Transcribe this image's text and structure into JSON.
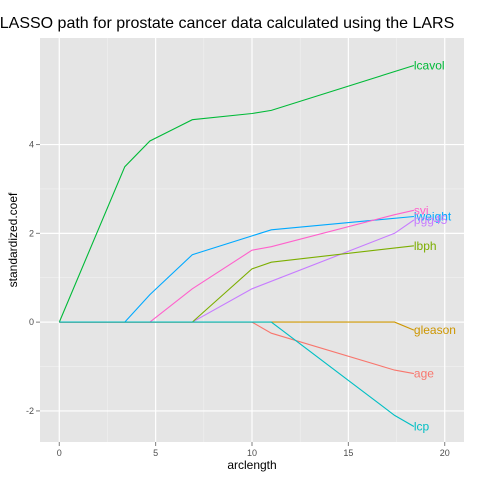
{
  "chart_data": {
    "type": "line",
    "title": "LASSO path for prostate cancer data calculated using the LARS",
    "xlabel": "arclength",
    "ylabel": "standardized.coef",
    "xlim": [
      -1,
      21
    ],
    "ylim": [
      -2.7,
      6.4
    ],
    "xticks": [
      0,
      5,
      10,
      15,
      20
    ],
    "yticks": [
      -2,
      0,
      2,
      4
    ],
    "grid": true,
    "legend": "direct labels at line ends",
    "series": [
      {
        "name": "lcavol",
        "color": "#00BA38",
        "points": [
          [
            0,
            0
          ],
          [
            3.4,
            3.5
          ],
          [
            4.7,
            4.08
          ],
          [
            6.9,
            4.56
          ],
          [
            10,
            4.7
          ],
          [
            11,
            4.77
          ],
          [
            18.4,
            5.78
          ]
        ]
      },
      {
        "name": "lweight",
        "color": "#00A9FF",
        "points": [
          [
            0,
            0
          ],
          [
            3.4,
            0
          ],
          [
            4.7,
            0.62
          ],
          [
            6.9,
            1.52
          ],
          [
            11,
            2.08
          ],
          [
            18.4,
            2.38
          ]
        ]
      },
      {
        "name": "svi",
        "color": "#FF61CC",
        "points": [
          [
            0,
            0
          ],
          [
            4.7,
            0
          ],
          [
            6.9,
            0.75
          ],
          [
            10,
            1.62
          ],
          [
            11,
            1.7
          ],
          [
            17.4,
            2.42
          ],
          [
            18.4,
            2.52
          ]
        ]
      },
      {
        "name": "pgg45",
        "color": "#C77CFF",
        "points": [
          [
            0,
            0
          ],
          [
            6.9,
            0
          ],
          [
            10,
            0.75
          ],
          [
            17.4,
            2.0
          ],
          [
            18.4,
            2.3
          ]
        ]
      },
      {
        "name": "lbph",
        "color": "#7CAE00",
        "points": [
          [
            0,
            0
          ],
          [
            6.9,
            0
          ],
          [
            10,
            1.2
          ],
          [
            11,
            1.35
          ],
          [
            18.4,
            1.72
          ]
        ]
      },
      {
        "name": "gleason",
        "color": "#CD9600",
        "points": [
          [
            0,
            0
          ],
          [
            17.4,
            0
          ],
          [
            18.4,
            -0.18
          ]
        ]
      },
      {
        "name": "age",
        "color": "#F8766D",
        "points": [
          [
            0,
            0
          ],
          [
            10,
            0
          ],
          [
            11,
            -0.25
          ],
          [
            17.4,
            -1.08
          ],
          [
            18.4,
            -1.16
          ]
        ]
      },
      {
        "name": "lcp",
        "color": "#00BFC4",
        "points": [
          [
            0,
            0
          ],
          [
            11,
            0
          ],
          [
            17.4,
            -2.1
          ],
          [
            18.4,
            -2.35
          ]
        ]
      }
    ]
  }
}
